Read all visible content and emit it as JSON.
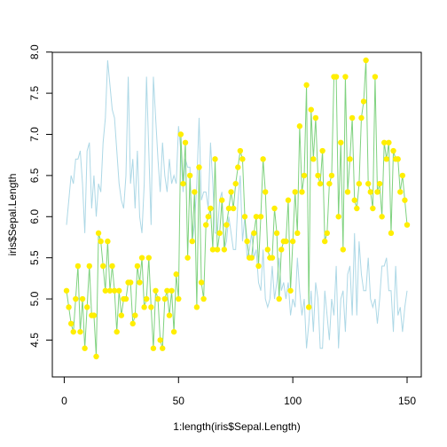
{
  "chart_data": {
    "type": "line",
    "xlabel": "1:length(iris$Sepal.Length)",
    "ylabel": "iris$Sepal.Length",
    "xlim": [
      1,
      150
    ],
    "ylim": [
      4.3,
      7.9
    ],
    "x_ticks": [
      0,
      50,
      100,
      150
    ],
    "y_ticks": [
      4.5,
      5.0,
      5.5,
      6.0,
      6.5,
      7.0,
      7.5,
      8.0
    ],
    "y_tick_labels": [
      "4.5",
      "5.0",
      "5.5",
      "6.0",
      "6.5",
      "7.0",
      "7.5",
      "8.0"
    ],
    "x": [
      1,
      2,
      3,
      4,
      5,
      6,
      7,
      8,
      9,
      10,
      11,
      12,
      13,
      14,
      15,
      16,
      17,
      18,
      19,
      20,
      21,
      22,
      23,
      24,
      25,
      26,
      27,
      28,
      29,
      30,
      31,
      32,
      33,
      34,
      35,
      36,
      37,
      38,
      39,
      40,
      41,
      42,
      43,
      44,
      45,
      46,
      47,
      48,
      49,
      50,
      51,
      52,
      53,
      54,
      55,
      56,
      57,
      58,
      59,
      60,
      61,
      62,
      63,
      64,
      65,
      66,
      67,
      68,
      69,
      70,
      71,
      72,
      73,
      74,
      75,
      76,
      77,
      78,
      79,
      80,
      81,
      82,
      83,
      84,
      85,
      86,
      87,
      88,
      89,
      90,
      91,
      92,
      93,
      94,
      95,
      96,
      97,
      98,
      99,
      100,
      101,
      102,
      103,
      104,
      105,
      106,
      107,
      108,
      109,
      110,
      111,
      112,
      113,
      114,
      115,
      116,
      117,
      118,
      119,
      120,
      121,
      122,
      123,
      124,
      125,
      126,
      127,
      128,
      129,
      130,
      131,
      132,
      133,
      134,
      135,
      136,
      137,
      138,
      139,
      140,
      141,
      142,
      143,
      144,
      145,
      146,
      147,
      148,
      149,
      150
    ],
    "grid": false,
    "series": [
      {
        "color": "#add8e6",
        "style": "line",
        "values": [
          5.9,
          6.2,
          6.5,
          6.4,
          6.7,
          6.7,
          6.8,
          6.4,
          5.8,
          6.8,
          6.9,
          6.1,
          6.5,
          6.0,
          6.4,
          6.3,
          6.9,
          7.2,
          7.9,
          7.6,
          7.3,
          7.2,
          6.8,
          6.4,
          6.2,
          6.1,
          6.5,
          7.7,
          6.4,
          6.7,
          6.1,
          6.8,
          6.0,
          5.8,
          6.4,
          7.7,
          6.8,
          5.9,
          7.7,
          7.2,
          6.7,
          6.3,
          6.9,
          6.5,
          6.3,
          6.7,
          6.4,
          6.5,
          6.4,
          7.1,
          6.8,
          6.3,
          6.7,
          6.6,
          6.6,
          5.7,
          5.9,
          6.4,
          7.2,
          6.2,
          6.3,
          6.3,
          6.1,
          6.9,
          6.4,
          5.8,
          5.8,
          6.2,
          6.3,
          5.6,
          5.7,
          6.0,
          5.8,
          5.6,
          5.6,
          6.2,
          6.5,
          5.7,
          6.0,
          5.5,
          5.6,
          5.8,
          5.5,
          5.6,
          5.2,
          5.1,
          5.6,
          5.0,
          4.9,
          5.0,
          5.4,
          5.0,
          5.2,
          5.5,
          5.1,
          5.2,
          5.0,
          5.2,
          4.8,
          5.0,
          4.9,
          5.5,
          5.1,
          4.8,
          5.0,
          4.4,
          4.7,
          5.1,
          4.6,
          5.2,
          5.0,
          4.4,
          4.4,
          5.1,
          4.8,
          4.5,
          5.0,
          4.8,
          5.4,
          4.4,
          5.0,
          5.1,
          4.6,
          5.3,
          5.4,
          4.8,
          5.8,
          4.8,
          5.7,
          5.3,
          5.1,
          5.1,
          5.5,
          5.0,
          4.9,
          5.0,
          4.7,
          5.0,
          5.4,
          5.4,
          5.5,
          5.1,
          5.1,
          4.6,
          5.4,
          4.8,
          4.9,
          4.6,
          4.9,
          5.1
        ]
      },
      {
        "color": "#7fd27f",
        "style": "line-points",
        "point_color": "#ffee00",
        "values": [
          5.1,
          4.9,
          4.7,
          4.6,
          5.0,
          5.4,
          4.6,
          5.0,
          4.4,
          4.9,
          5.4,
          4.8,
          4.8,
          4.3,
          5.8,
          5.7,
          5.4,
          5.1,
          5.7,
          5.1,
          5.4,
          5.1,
          4.6,
          5.1,
          4.8,
          5.0,
          5.0,
          5.2,
          5.2,
          4.7,
          4.8,
          5.4,
          5.2,
          5.5,
          4.9,
          5.0,
          5.5,
          4.9,
          4.4,
          5.1,
          5.0,
          4.5,
          4.4,
          5.0,
          5.1,
          4.8,
          5.1,
          4.6,
          5.3,
          5.0,
          7.0,
          6.4,
          6.9,
          5.5,
          6.5,
          5.7,
          6.3,
          4.9,
          6.6,
          5.2,
          5.0,
          5.9,
          6.0,
          6.1,
          5.6,
          6.7,
          5.6,
          5.8,
          6.2,
          5.6,
          5.9,
          6.1,
          6.3,
          6.1,
          6.4,
          6.6,
          6.8,
          6.7,
          6.0,
          5.7,
          5.5,
          5.5,
          5.8,
          6.0,
          5.4,
          6.0,
          6.7,
          6.3,
          5.6,
          5.5,
          5.5,
          6.1,
          5.8,
          5.0,
          5.6,
          5.7,
          5.7,
          6.2,
          5.1,
          5.7,
          6.3,
          5.8,
          7.1,
          6.3,
          6.5,
          7.6,
          4.9,
          7.3,
          6.7,
          7.2,
          6.5,
          6.4,
          6.8,
          5.7,
          5.8,
          6.4,
          6.5,
          7.7,
          7.7,
          6.0,
          6.9,
          5.6,
          7.7,
          6.3,
          6.7,
          7.2,
          6.2,
          6.1,
          6.4,
          7.2,
          7.4,
          7.9,
          6.4,
          6.3,
          6.1,
          7.7,
          6.3,
          6.4,
          6.0,
          6.9,
          6.7,
          6.9,
          5.8,
          6.8,
          6.7,
          6.7,
          6.3,
          6.5,
          6.2,
          5.9
        ]
      }
    ]
  }
}
